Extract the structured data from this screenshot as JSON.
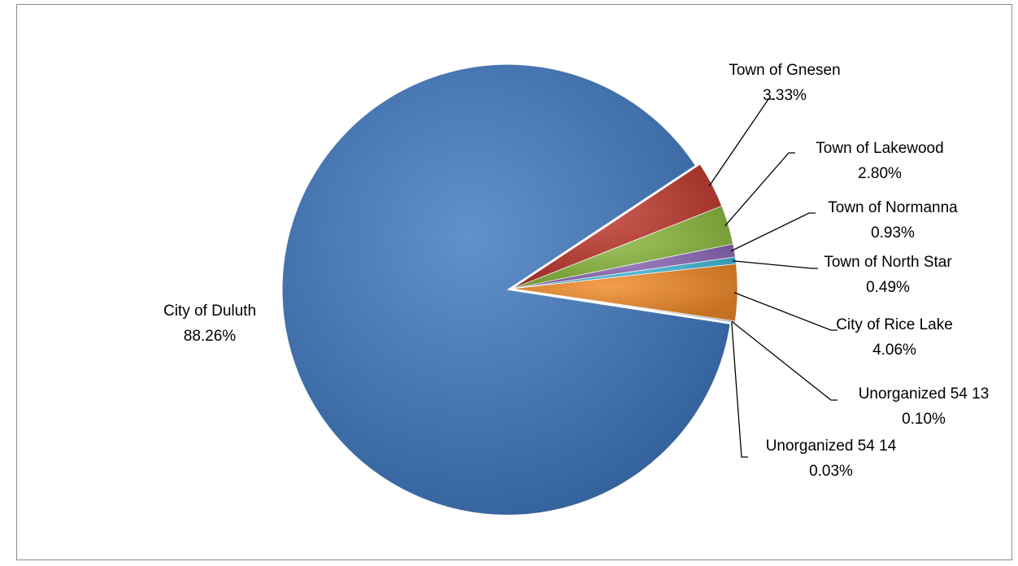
{
  "chart_data": {
    "type": "pie",
    "title": "",
    "legend": "none",
    "slices": [
      {
        "label": "Town of Gnesen",
        "value": 3.33,
        "pct": "3.33%",
        "color": "#c0392f"
      },
      {
        "label": "Town of Lakewood",
        "value": 2.8,
        "pct": "2.80%",
        "color": "#8cba3f"
      },
      {
        "label": "Town of Normanna",
        "value": 0.93,
        "pct": "0.93%",
        "color": "#8b68b8"
      },
      {
        "label": "Town of North Star",
        "value": 0.49,
        "pct": "0.49%",
        "color": "#3fb8d6"
      },
      {
        "label": "City of Rice Lake",
        "value": 4.06,
        "pct": "4.06%",
        "color": "#f08a28"
      },
      {
        "label": "Unorganized 54 13",
        "value": 0.1,
        "pct": "0.10%",
        "color": "#9fb8db"
      },
      {
        "label": "Unorganized 54 14",
        "value": 0.03,
        "pct": "0.03%",
        "color": "#d99b9b"
      },
      {
        "label": "City of Duluth",
        "value": 88.26,
        "pct": "88.26%",
        "color": "#3f78c0"
      }
    ]
  }
}
